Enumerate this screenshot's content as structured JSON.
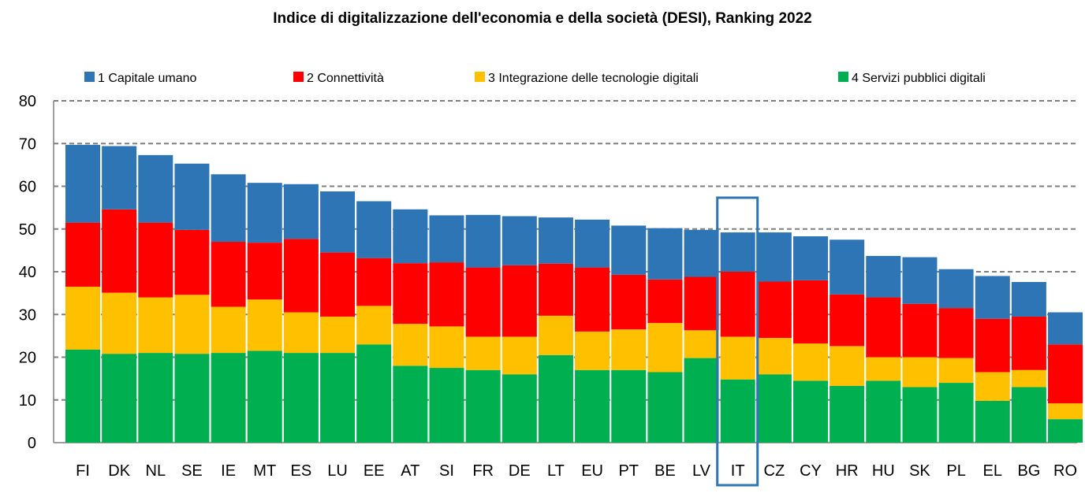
{
  "chart_data": {
    "type": "bar",
    "stacked": true,
    "title": "Indice di digitalizzazione dell'economia e della società (DESI), Ranking 2022",
    "xlabel": "",
    "ylabel": "",
    "ylim": [
      0,
      80
    ],
    "yticks": [
      0,
      10,
      20,
      30,
      40,
      50,
      60,
      70,
      80
    ],
    "grid": "dashed horizontal",
    "legend_position": "top",
    "highlight_category": "IT",
    "categories": [
      "FI",
      "DK",
      "NL",
      "SE",
      "IE",
      "MT",
      "ES",
      "LU",
      "EE",
      "AT",
      "SI",
      "FR",
      "DE",
      "LT",
      "EU",
      "PT",
      "BE",
      "LV",
      "IT",
      "CZ",
      "CY",
      "HR",
      "HU",
      "SK",
      "PL",
      "EL",
      "BG",
      "RO"
    ],
    "series": [
      {
        "name": "4 Servizi pubblici digitali",
        "color": "#00b050",
        "values": [
          21.8,
          20.8,
          21.0,
          20.8,
          21.0,
          21.5,
          21.0,
          21.0,
          23.0,
          18.0,
          17.5,
          17.0,
          16.0,
          20.5,
          17.0,
          17.0,
          16.5,
          19.8,
          14.8,
          16.0,
          14.5,
          13.3,
          14.5,
          13.0,
          14.0,
          9.8,
          13.0,
          5.5
        ]
      },
      {
        "name": "3 Integrazione delle tecnologie digitali",
        "color": "#ffc000",
        "values": [
          14.7,
          14.3,
          13.0,
          13.8,
          10.8,
          12.0,
          9.5,
          8.5,
          9.0,
          9.8,
          9.7,
          7.8,
          8.8,
          9.2,
          9.0,
          9.5,
          11.5,
          6.5,
          10.0,
          8.5,
          8.7,
          9.3,
          5.5,
          7.0,
          5.8,
          6.7,
          4.0,
          3.7
        ]
      },
      {
        "name": "2 Connettività",
        "color": "#ff0000",
        "values": [
          15.0,
          19.5,
          17.5,
          15.2,
          15.2,
          13.3,
          17.2,
          15.0,
          11.2,
          14.2,
          15.0,
          16.2,
          16.7,
          12.2,
          15.0,
          12.8,
          10.2,
          12.5,
          15.2,
          13.2,
          14.8,
          12.1,
          14.0,
          12.5,
          11.7,
          12.5,
          12.5,
          13.8
        ]
      },
      {
        "name": "1 Capitale umano",
        "color": "#2e75b6",
        "values": [
          18.2,
          14.8,
          15.8,
          15.5,
          15.8,
          14.0,
          12.8,
          14.3,
          13.3,
          12.6,
          11.0,
          12.3,
          11.5,
          10.8,
          11.2,
          11.5,
          12.0,
          11.0,
          9.2,
          11.5,
          10.3,
          12.8,
          9.7,
          10.9,
          9.1,
          10.0,
          8.1,
          7.5
        ]
      }
    ]
  }
}
